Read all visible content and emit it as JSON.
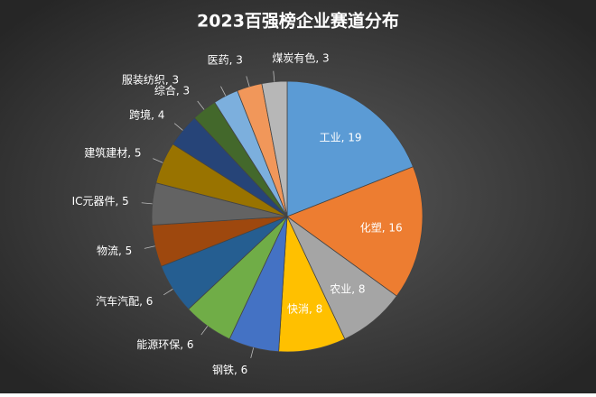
{
  "chart_data": {
    "type": "pie",
    "title": "2023百强榜企业赛道分布",
    "values": [
      19,
      16,
      8,
      8,
      6,
      6,
      6,
      5,
      5,
      5,
      4,
      3,
      3,
      3,
      3
    ],
    "value_labels": [
      "工业, 19",
      "化塑, 16",
      "农业, 8",
      "快消, 8",
      "钢铁, 6",
      "能源环保, 6",
      "汽车汽配, 6",
      "物流, 5",
      "IC元器件, 5",
      "建筑建材, 5",
      "跨境, 4",
      "综合, 3",
      "服装纺织, 3",
      "医药, 3",
      "煤炭有色, 3"
    ],
    "colors": [
      "#5b9bd5",
      "#ed7d31",
      "#a5a5a5",
      "#ffc000",
      "#4472c4",
      "#70ad47",
      "#255e91",
      "#9e480e",
      "#636363",
      "#997300",
      "#264478",
      "#43682b",
      "#7cafdd",
      "#f1975a",
      "#b7b7b7"
    ]
  }
}
